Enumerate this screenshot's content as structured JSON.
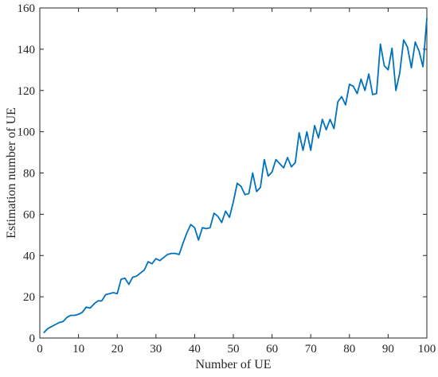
{
  "chart_data": {
    "type": "line",
    "title": "",
    "xlabel": "Number of UE",
    "ylabel": "Estimation number of UE",
    "xlim": [
      0,
      100
    ],
    "ylim": [
      0,
      160
    ],
    "xticks": [
      0,
      10,
      20,
      30,
      40,
      50,
      60,
      70,
      80,
      90,
      100
    ],
    "yticks": [
      0,
      20,
      40,
      60,
      80,
      100,
      120,
      140,
      160
    ],
    "grid": false,
    "legend": "none",
    "line_color": "#0072BD",
    "series": [
      {
        "x": [
          1,
          2,
          3,
          4,
          5,
          6,
          7,
          8,
          9,
          10,
          11,
          12,
          13,
          14,
          15,
          16,
          17,
          18,
          19,
          20,
          21,
          22,
          23,
          24,
          25,
          26,
          27,
          28,
          29,
          30,
          31,
          32,
          33,
          34,
          35,
          36,
          37,
          38,
          39,
          40,
          41,
          42,
          43,
          44,
          45,
          46,
          47,
          48,
          49,
          50,
          51,
          52,
          53,
          54,
          55,
          56,
          57,
          58,
          59,
          60,
          61,
          62,
          63,
          64,
          65,
          66,
          67,
          68,
          69,
          70,
          71,
          72,
          73,
          74,
          75,
          76,
          77,
          78,
          79,
          80,
          81,
          82,
          83,
          84,
          85,
          86,
          87,
          88,
          89,
          90,
          91,
          92,
          93,
          94,
          95,
          96,
          97,
          98,
          99,
          100
        ],
        "values": [
          2.5,
          4.5,
          5.5,
          6.5,
          7.5,
          8,
          10,
          11,
          11,
          11.5,
          12.5,
          15,
          14.5,
          16.5,
          18,
          18,
          21,
          21.5,
          22,
          21.5,
          28.5,
          29,
          26,
          29.5,
          30,
          31.5,
          33,
          37,
          36,
          38.5,
          37.5,
          39,
          40.5,
          41,
          41,
          40.5,
          46,
          51,
          55,
          53.5,
          47.5,
          53.5,
          53,
          53.5,
          60.5,
          59,
          56,
          61.5,
          58.5,
          66,
          75,
          73.5,
          69.5,
          70,
          80,
          71,
          73,
          86.5,
          78.5,
          80.5,
          86.5,
          84.5,
          82.5,
          87.5,
          83,
          85,
          99.5,
          91,
          100,
          91,
          103,
          97,
          106,
          101,
          106,
          101.5,
          114.5,
          117,
          113,
          123,
          122,
          118.5,
          125.5,
          120,
          128,
          118,
          118.5,
          142.5,
          132,
          130,
          140.5,
          120,
          128.5,
          144.5,
          141,
          131,
          143.5,
          139,
          131.5,
          155
        ]
      }
    ]
  }
}
